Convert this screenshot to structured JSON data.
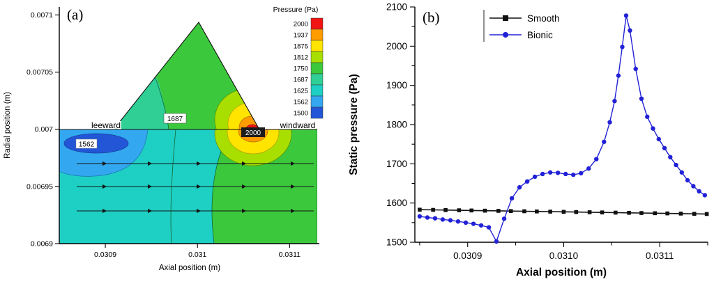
{
  "figure": {
    "panel_a_label": "(a)",
    "panel_b_label": "(b)"
  },
  "chart_data": [
    {
      "type": "heatmap",
      "subtype": "filled-contour-with-streamlines",
      "panel": "a",
      "xlabel": "Axial position (m)",
      "ylabel": "Radial position (m)",
      "xlim": [
        0.03085,
        0.03113
      ],
      "ylim": [
        0.0069,
        0.007107
      ],
      "x_ticks": [
        "0.0309",
        "0.031",
        "0.0311"
      ],
      "x_tick_values": [
        0.0309,
        0.031,
        0.0311
      ],
      "y_ticks": [
        "0.0069",
        "0.00695",
        "0.007",
        "0.00705",
        "0.0071"
      ],
      "y_tick_values": [
        0.0069,
        0.00695,
        0.007,
        0.00705,
        0.0071
      ],
      "colorbar_title": "Pressure (Pa)",
      "levels": [
        "2000",
        "1937",
        "1875",
        "1812",
        "1750",
        "1687",
        "1625",
        "1562",
        "1500"
      ],
      "level_colors": [
        "#f11414",
        "#ff9c00",
        "#ffe400",
        "#a8df00",
        "#3cc83c",
        "#2fcf96",
        "#1ecfc4",
        "#33a7ef",
        "#2256d6"
      ],
      "features": {
        "surface_y": 0.007,
        "triangle_base_x": [
          0.030905,
          0.031065
        ],
        "triangle_apex": [
          0.030985,
          0.0071
        ],
        "leeward_label": "leeward",
        "windward_label": "windward",
        "low_pressure_label": "1562",
        "mid_contour_label": "1687",
        "peak_label": "2000"
      }
    },
    {
      "type": "line",
      "panel": "b",
      "xlabel": "Axial position (m)",
      "ylabel": "Static pressure (Pa)",
      "xlim": [
        0.030845,
        0.03115
      ],
      "ylim": [
        1500,
        2100
      ],
      "x_ticks": [
        "0.0309",
        "0.0310",
        "0.0311"
      ],
      "x_tick_values": [
        0.0309,
        0.031,
        0.0311
      ],
      "x_minor_tick_values": [
        0.03085,
        0.03095,
        0.03105,
        0.03115
      ],
      "y_ticks": [
        "1500",
        "1600",
        "1700",
        "1800",
        "1900",
        "2000",
        "2100"
      ],
      "y_tick_values": [
        1500,
        1600,
        1700,
        1800,
        1900,
        2000,
        2100
      ],
      "y_minor_tick_values": [
        1550,
        1650,
        1750,
        1850,
        1950,
        2050
      ],
      "legend_position": "top-inside",
      "series": [
        {
          "name": "Smooth",
          "color": "#111111",
          "marker": "square",
          "points": [
            [
              0.03085,
              1583
            ],
            [
              0.030864,
              1582.5
            ],
            [
              0.030877,
              1582
            ],
            [
              0.030891,
              1581.5
            ],
            [
              0.030904,
              1581
            ],
            [
              0.030918,
              1580.5
            ],
            [
              0.030932,
              1580
            ],
            [
              0.030945,
              1579.5
            ],
            [
              0.030959,
              1579
            ],
            [
              0.030972,
              1578.5
            ],
            [
              0.030986,
              1578
            ],
            [
              0.031,
              1577.5
            ],
            [
              0.031013,
              1577
            ],
            [
              0.031027,
              1576.5
            ],
            [
              0.03104,
              1576
            ],
            [
              0.031054,
              1575.5
            ],
            [
              0.031068,
              1575
            ],
            [
              0.031081,
              1574.5
            ],
            [
              0.031095,
              1574
            ],
            [
              0.031108,
              1573.5
            ],
            [
              0.031122,
              1573
            ],
            [
              0.031136,
              1572.5
            ],
            [
              0.031149,
              1572
            ]
          ]
        },
        {
          "name": "Bionic",
          "color": "#2121d6",
          "marker": "circle",
          "points": [
            [
              0.03085,
              1566
            ],
            [
              0.030858,
              1563
            ],
            [
              0.030866,
              1561
            ],
            [
              0.030874,
              1558
            ],
            [
              0.030882,
              1556
            ],
            [
              0.03089,
              1553
            ],
            [
              0.030898,
              1550
            ],
            [
              0.030906,
              1547
            ],
            [
              0.030914,
              1543
            ],
            [
              0.030922,
              1538
            ],
            [
              0.03093,
              1502
            ],
            [
              0.030938,
              1560
            ],
            [
              0.030946,
              1612
            ],
            [
              0.030954,
              1640
            ],
            [
              0.030962,
              1655
            ],
            [
              0.03097,
              1667
            ],
            [
              0.030978,
              1674
            ],
            [
              0.030986,
              1678
            ],
            [
              0.030994,
              1677
            ],
            [
              0.031002,
              1674
            ],
            [
              0.03101,
              1672
            ],
            [
              0.031018,
              1676
            ],
            [
              0.031026,
              1688
            ],
            [
              0.031034,
              1712
            ],
            [
              0.031042,
              1756
            ],
            [
              0.031048,
              1806
            ],
            [
              0.031053,
              1860
            ],
            [
              0.031057,
              1925
            ],
            [
              0.031061,
              1998
            ],
            [
              0.031065,
              2078
            ],
            [
              0.031069,
              2040
            ],
            [
              0.031075,
              1942
            ],
            [
              0.031081,
              1866
            ],
            [
              0.031087,
              1820
            ],
            [
              0.031093,
              1790
            ],
            [
              0.031099,
              1763
            ],
            [
              0.031105,
              1740
            ],
            [
              0.031111,
              1717
            ],
            [
              0.031117,
              1697
            ],
            [
              0.031123,
              1678
            ],
            [
              0.031129,
              1658
            ],
            [
              0.031135,
              1643
            ],
            [
              0.031141,
              1630
            ],
            [
              0.031147,
              1620
            ]
          ]
        }
      ]
    }
  ]
}
